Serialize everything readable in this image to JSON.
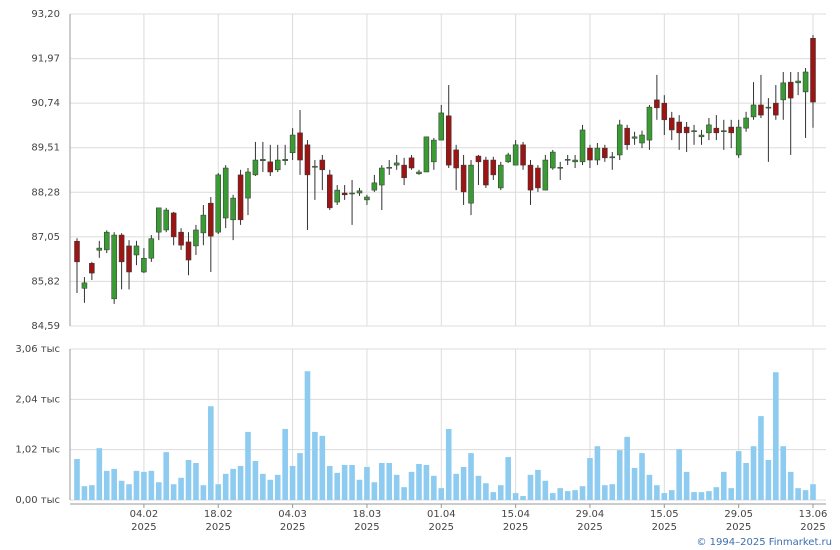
{
  "chart_data": {
    "type": "candlestick",
    "x": [
      "2025-01-22",
      "2025-01-23",
      "2025-01-24",
      "2025-01-27",
      "2025-01-28",
      "2025-01-29",
      "2025-01-30",
      "2025-01-31",
      "2025-02-03",
      "2025-02-04",
      "2025-02-05",
      "2025-02-06",
      "2025-02-07",
      "2025-02-10",
      "2025-02-11",
      "2025-02-12",
      "2025-02-13",
      "2025-02-14",
      "2025-02-17",
      "2025-02-18",
      "2025-02-19",
      "2025-02-20",
      "2025-02-21",
      "2025-02-24",
      "2025-02-25",
      "2025-02-26",
      "2025-02-27",
      "2025-02-28",
      "2025-03-03",
      "2025-03-04",
      "2025-03-05",
      "2025-03-06",
      "2025-03-07",
      "2025-03-10",
      "2025-03-11",
      "2025-03-12",
      "2025-03-13",
      "2025-03-14",
      "2025-03-17",
      "2025-03-18",
      "2025-03-19",
      "2025-03-20",
      "2025-03-21",
      "2025-03-24",
      "2025-03-25",
      "2025-03-26",
      "2025-03-27",
      "2025-03-28",
      "2025-03-31",
      "2025-04-01",
      "2025-04-02",
      "2025-04-03",
      "2025-04-04",
      "2025-04-07",
      "2025-04-08",
      "2025-04-09",
      "2025-04-10",
      "2025-04-11",
      "2025-04-14",
      "2025-04-15",
      "2025-04-16",
      "2025-04-17",
      "2025-04-18",
      "2025-04-21",
      "2025-04-22",
      "2025-04-23",
      "2025-04-24",
      "2025-04-25",
      "2025-04-28",
      "2025-04-29",
      "2025-04-30",
      "2025-05-02",
      "2025-05-05",
      "2025-05-06",
      "2025-05-07",
      "2025-05-08",
      "2025-05-12",
      "2025-05-13",
      "2025-05-14",
      "2025-05-15",
      "2025-05-16",
      "2025-05-19",
      "2025-05-20",
      "2025-05-21",
      "2025-05-22",
      "2025-05-23",
      "2025-05-26",
      "2025-05-27",
      "2025-05-28",
      "2025-05-29",
      "2025-05-30",
      "2025-06-02",
      "2025-06-03",
      "2025-06-04",
      "2025-06-05",
      "2025-06-06",
      "2025-06-09",
      "2025-06-10",
      "2025-06-11",
      "2025-06-13"
    ],
    "open": [
      86.93,
      85.63,
      86.32,
      86.68,
      86.69,
      85.34,
      87.1,
      86.8,
      86.55,
      86.08,
      86.46,
      87.18,
      87.24,
      87.71,
      87.18,
      86.91,
      86.8,
      87.16,
      87.98,
      87.18,
      87.57,
      87.52,
      88.76,
      88.12,
      88.76,
      89.15,
      89.12,
      88.9,
      89.15,
      89.37,
      89.92,
      89.59,
      88.97,
      89.17,
      88.76,
      88.01,
      88.26,
      88.24,
      88.26,
      88.07,
      88.34,
      88.48,
      88.95,
      89.03,
      89.03,
      89.23,
      88.79,
      88.84,
      89.12,
      89.72,
      90.39,
      89.45,
      89.03,
      87.98,
      89.28,
      89.17,
      89.17,
      88.4,
      89.12,
      89.03,
      89.59,
      89.03,
      88.95,
      88.34,
      88.95,
      88.95,
      89.17,
      89.12,
      89.12,
      89.5,
      89.17,
      89.5,
      89.23,
      89.31,
      90.05,
      89.77,
      89.64,
      89.72,
      90.83,
      90.74,
      90.33,
      90.22,
      90.08,
      89.95,
      89.81,
      89.92,
      90.05,
      89.95,
      90.08,
      89.31,
      90.05,
      90.36,
      90.69,
      90.61,
      90.74,
      90.83,
      91.32,
      91.3,
      91.05,
      92.53
    ],
    "high": [
      87.01,
      85.94,
      86.36,
      86.94,
      87.23,
      87.18,
      87.15,
      86.96,
      86.94,
      86.74,
      87.1,
      87.85,
      87.85,
      87.74,
      87.29,
      87.18,
      87.38,
      87.93,
      88.15,
      88.81,
      89.03,
      88.21,
      88.9,
      88.95,
      89.67,
      89.67,
      89.59,
      89.59,
      89.59,
      90.05,
      90.55,
      89.72,
      89.17,
      89.31,
      88.9,
      88.48,
      88.48,
      88.62,
      88.4,
      88.21,
      88.76,
      89.03,
      89.17,
      89.31,
      89.23,
      89.31,
      88.9,
      89.81,
      89.78,
      90.69,
      91.24,
      89.59,
      89.31,
      89.17,
      89.31,
      89.26,
      89.26,
      89.12,
      89.37,
      89.72,
      89.67,
      89.17,
      89.03,
      89.31,
      89.45,
      89.12,
      89.31,
      89.31,
      90.14,
      89.59,
      89.64,
      89.59,
      89.39,
      90.28,
      90.14,
      89.95,
      89.98,
      90.69,
      91.52,
      90.96,
      90.5,
      90.41,
      90.22,
      90.14,
      90.0,
      90.33,
      90.41,
      90.28,
      90.28,
      90.28,
      90.5,
      91.32,
      91.52,
      90.88,
      91.24,
      91.6,
      91.6,
      91.6,
      91.71,
      92.62
    ],
    "low": [
      85.5,
      85.23,
      85.86,
      86.47,
      86.6,
      85.2,
      85.6,
      85.6,
      86.27,
      86.05,
      86.36,
      86.96,
      87.18,
      86.82,
      86.69,
      85.99,
      86.55,
      86.82,
      86.08,
      87.13,
      87.29,
      86.96,
      87.38,
      87.65,
      88.73,
      88.84,
      88.73,
      88.84,
      89.03,
      89.17,
      88.76,
      87.24,
      88.07,
      88.34,
      87.79,
      87.93,
      88.07,
      87.38,
      88.18,
      87.93,
      88.29,
      87.79,
      88.76,
      88.9,
      88.48,
      88.9,
      88.76,
      88.84,
      88.9,
      89.72,
      88.95,
      88.34,
      87.93,
      87.65,
      88.48,
      88.4,
      88.62,
      88.34,
      89.09,
      89.03,
      88.9,
      87.93,
      88.29,
      88.34,
      88.9,
      88.62,
      89.03,
      88.95,
      89.03,
      88.95,
      89.03,
      89.12,
      88.9,
      89.17,
      89.45,
      89.59,
      89.5,
      89.45,
      90.28,
      89.86,
      89.72,
      89.45,
      89.39,
      89.59,
      89.59,
      89.72,
      89.72,
      89.45,
      89.5,
      89.23,
      89.95,
      90.28,
      90.33,
      89.12,
      90.28,
      90.28,
      89.31,
      90.96,
      89.78,
      90.06
    ],
    "close": [
      86.36,
      85.78,
      86.05,
      86.74,
      87.18,
      87.1,
      86.36,
      86.08,
      86.8,
      86.46,
      87.0,
      87.85,
      87.79,
      87.05,
      86.82,
      86.41,
      87.24,
      87.65,
      87.07,
      88.76,
      88.95,
      88.12,
      87.52,
      88.84,
      89.17,
      89.19,
      88.84,
      89.17,
      89.19,
      89.86,
      89.17,
      88.76,
      89.0,
      88.9,
      87.85,
      88.34,
      88.21,
      88.26,
      88.32,
      88.15,
      88.54,
      88.95,
      88.97,
      89.09,
      88.68,
      88.95,
      88.84,
      89.81,
      89.72,
      90.47,
      89.03,
      88.95,
      88.29,
      89.03,
      89.12,
      88.48,
      88.76,
      89.03,
      89.31,
      89.59,
      89.03,
      88.34,
      88.4,
      89.17,
      89.39,
      88.97,
      89.19,
      89.17,
      90.0,
      89.17,
      89.5,
      89.23,
      89.26,
      90.14,
      89.59,
      89.81,
      89.86,
      90.63,
      90.61,
      90.28,
      90.0,
      89.92,
      89.92,
      89.98,
      89.86,
      90.14,
      89.92,
      89.98,
      89.92,
      90.08,
      90.33,
      90.69,
      90.41,
      90.63,
      90.41,
      91.3,
      90.88,
      91.35,
      91.6,
      90.77
    ],
    "up_color": "#3a9a34",
    "down_color": "#9b1515",
    "wick_color": "#333333",
    "ylim": [
      84.59,
      93.2
    ],
    "yticks": [
      {
        "value": 84.59,
        "label": "84,59"
      },
      {
        "value": 85.82,
        "label": "85,82"
      },
      {
        "value": 87.05,
        "label": "87,05"
      },
      {
        "value": 88.28,
        "label": "88,28"
      },
      {
        "value": 89.51,
        "label": "89,51"
      },
      {
        "value": 90.74,
        "label": "90,74"
      },
      {
        "value": 91.97,
        "label": "91,97"
      },
      {
        "value": 93.2,
        "label": "93,20"
      }
    ],
    "xticks": [
      {
        "value": "2025-02-04",
        "label": "04.02"
      },
      {
        "value": "2025-02-18",
        "label": "18.02"
      },
      {
        "value": "2025-03-04",
        "label": "04.03"
      },
      {
        "value": "2025-03-18",
        "label": "18.03"
      },
      {
        "value": "2025-04-01",
        "label": "01.04"
      },
      {
        "value": "2025-04-15",
        "label": "15.04"
      },
      {
        "value": "2025-04-29",
        "label": "29.04"
      },
      {
        "value": "2025-05-15",
        "label": "15.05"
      },
      {
        "value": "2025-05-29",
        "label": "29.05"
      },
      {
        "value": "2025-06-13",
        "label": "13.06"
      }
    ],
    "x_year_label": "2025",
    "grid": true,
    "volume": {
      "type": "bar",
      "color": "#8ecbf0",
      "values": [
        0.83,
        0.28,
        0.3,
        1.05,
        0.59,
        0.63,
        0.39,
        0.32,
        0.59,
        0.57,
        0.59,
        0.36,
        0.97,
        0.32,
        0.45,
        0.81,
        0.75,
        0.3,
        1.9,
        0.32,
        0.53,
        0.63,
        0.69,
        1.38,
        0.79,
        0.53,
        0.41,
        0.51,
        1.44,
        0.69,
        0.95,
        2.61,
        1.38,
        1.3,
        0.69,
        0.55,
        0.71,
        0.71,
        0.41,
        0.67,
        0.36,
        0.75,
        0.75,
        0.51,
        0.26,
        0.57,
        0.73,
        0.71,
        0.49,
        0.24,
        1.44,
        0.53,
        0.67,
        0.95,
        0.49,
        0.34,
        0.16,
        0.3,
        0.87,
        0.14,
        0.08,
        0.51,
        0.61,
        0.39,
        0.14,
        0.24,
        0.18,
        0.2,
        0.28,
        0.85,
        1.09,
        0.3,
        0.32,
        1.01,
        1.28,
        0.65,
        0.95,
        0.51,
        0.3,
        0.14,
        0.2,
        1.03,
        0.57,
        0.16,
        0.16,
        0.18,
        0.26,
        0.57,
        0.24,
        0.99,
        0.75,
        1.09,
        1.7,
        0.81,
        2.59,
        1.09,
        0.57,
        0.24,
        0.2,
        0.32
      ],
      "ylim": [
        0,
        3.06
      ],
      "yticks": [
        {
          "value": 0,
          "label": "0,00 тыс"
        },
        {
          "value": 1.02,
          "label": "1,02 тыс"
        },
        {
          "value": 2.04,
          "label": "2,04 тыс"
        },
        {
          "value": 3.06,
          "label": "3,06 тыс"
        }
      ]
    }
  },
  "credit": "© 1994–2025 Finmarket.ru"
}
